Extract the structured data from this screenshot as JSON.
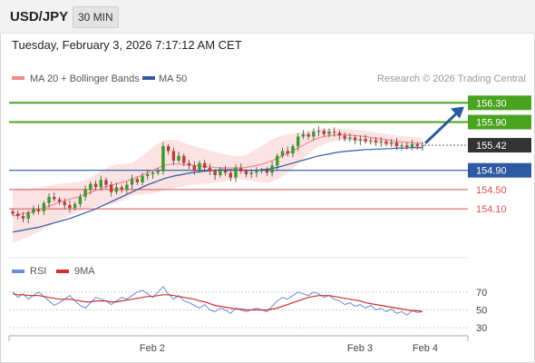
{
  "header": {
    "symbol": "USD/JPY",
    "timeframe": "30 MIN"
  },
  "datetime": "Tuesday, February 3, 2026 7:17:12 AM CET",
  "credit": "Research © 2026 Trading Central",
  "colors": {
    "ma20": "#f28b8b",
    "ma50": "#2d5aa0",
    "resistance": "#4aa31f",
    "support_blue": "#2d5aa0",
    "support_red": "#e05050",
    "candle_up": "#3a9a2a",
    "candle_down": "#c33a3a",
    "rsi": "#6a8cdb",
    "rsi_ma": "#d03030",
    "arrow": "#2d5aa0",
    "current": "#333333"
  },
  "chart_data": [
    {
      "type": "candlestick",
      "legend": [
        {
          "name": "MA 20 + Bollinger Bands",
          "color": "#f28b8b"
        },
        {
          "name": "MA 50",
          "color": "#2d5aa0"
        }
      ],
      "x_ticks": [
        "Feb 2",
        "Feb 3",
        "Feb 4"
      ],
      "ylim": [
        153.2,
        156.55
      ],
      "current_price": "155.42",
      "levels": [
        {
          "value": 156.3,
          "label": "156.30",
          "kind": "resistance"
        },
        {
          "value": 155.9,
          "label": "155.90",
          "kind": "resistance"
        },
        {
          "value": 154.9,
          "label": "154.90",
          "kind": "pivot"
        },
        {
          "value": 154.5,
          "label": "154.50",
          "kind": "support"
        },
        {
          "value": 154.1,
          "label": "154.10",
          "kind": "support"
        }
      ],
      "closes": [
        154.0,
        153.95,
        153.9,
        154.02,
        154.1,
        154.05,
        154.22,
        154.35,
        154.3,
        154.25,
        154.18,
        154.12,
        154.2,
        154.35,
        154.5,
        154.62,
        154.55,
        154.7,
        154.6,
        154.45,
        154.55,
        154.5,
        154.6,
        154.72,
        154.65,
        154.78,
        154.82,
        154.85,
        154.88,
        155.4,
        155.3,
        155.1,
        155.2,
        155.05,
        155.0,
        154.9,
        155.05,
        154.95,
        154.88,
        154.8,
        154.9,
        154.85,
        154.75,
        154.95,
        154.88,
        154.82,
        154.85,
        154.88,
        154.9,
        154.85,
        155.0,
        155.2,
        155.3,
        155.25,
        155.4,
        155.6,
        155.65,
        155.6,
        155.7,
        155.72,
        155.65,
        155.7,
        155.68,
        155.62,
        155.55,
        155.58,
        155.52,
        155.55,
        155.5,
        155.52,
        155.48,
        155.5,
        155.45,
        155.48,
        155.4,
        155.42,
        155.38,
        155.44,
        155.4,
        155.42
      ],
      "ma20": [
        153.95,
        153.98,
        154.0,
        154.02,
        154.05,
        154.08,
        154.12,
        154.16,
        154.2,
        154.24,
        154.27,
        154.3,
        154.33,
        154.36,
        154.4,
        154.44,
        154.48,
        154.52,
        154.56,
        154.59,
        154.62,
        154.65,
        154.68,
        154.72,
        154.76,
        154.8,
        154.85,
        154.9,
        154.95,
        155.0,
        155.02,
        155.03,
        155.03,
        155.02,
        155.01,
        155.0,
        154.99,
        154.98,
        154.97,
        154.96,
        154.95,
        154.95,
        154.95,
        154.95,
        154.95,
        154.96,
        154.98,
        155.0,
        155.03,
        155.06,
        155.1,
        155.15,
        155.2,
        155.25,
        155.3,
        155.36,
        155.42,
        155.48,
        155.53,
        155.57,
        155.6,
        155.62,
        155.63,
        155.64,
        155.64,
        155.63,
        155.62,
        155.61,
        155.6,
        155.58,
        155.56,
        155.55,
        155.53,
        155.52,
        155.5,
        155.49,
        155.48,
        155.47,
        155.46,
        155.45
      ],
      "bb_width": [
        0.55,
        0.55,
        0.52,
        0.5,
        0.48,
        0.46,
        0.44,
        0.42,
        0.4,
        0.38,
        0.36,
        0.34,
        0.32,
        0.3,
        0.3,
        0.32,
        0.34,
        0.36,
        0.38,
        0.4,
        0.4,
        0.38,
        0.36,
        0.34,
        0.36,
        0.4,
        0.44,
        0.48,
        0.5,
        0.52,
        0.52,
        0.5,
        0.48,
        0.45,
        0.42,
        0.4,
        0.38,
        0.36,
        0.34,
        0.32,
        0.3,
        0.28,
        0.26,
        0.24,
        0.24,
        0.26,
        0.3,
        0.34,
        0.38,
        0.42,
        0.44,
        0.44,
        0.42,
        0.4,
        0.36,
        0.32,
        0.28,
        0.24,
        0.2,
        0.18,
        0.16,
        0.14,
        0.13,
        0.12,
        0.12,
        0.12,
        0.12,
        0.12,
        0.12,
        0.12,
        0.12,
        0.12,
        0.12,
        0.12,
        0.12,
        0.12,
        0.12,
        0.12,
        0.12,
        0.12
      ],
      "ma50": [
        153.62,
        153.64,
        153.66,
        153.68,
        153.7,
        153.72,
        153.75,
        153.78,
        153.81,
        153.84,
        153.87,
        153.9,
        153.94,
        153.98,
        154.02,
        154.06,
        154.1,
        154.15,
        154.2,
        154.25,
        154.3,
        154.35,
        154.4,
        154.45,
        154.5,
        154.55,
        154.6,
        154.64,
        154.68,
        154.72,
        154.75,
        154.78,
        154.8,
        154.82,
        154.84,
        154.86,
        154.87,
        154.88,
        154.89,
        154.9,
        154.91,
        154.91,
        154.91,
        154.91,
        154.9,
        154.9,
        154.9,
        154.9,
        154.91,
        154.92,
        154.94,
        154.96,
        154.99,
        155.02,
        155.05,
        155.08,
        155.11,
        155.14,
        155.17,
        155.2,
        155.22,
        155.24,
        155.26,
        155.28,
        155.29,
        155.3,
        155.31,
        155.32,
        155.33,
        155.33,
        155.34,
        155.34,
        155.35,
        155.35,
        155.36,
        155.36,
        155.36,
        155.37,
        155.37,
        155.37
      ]
    },
    {
      "type": "line",
      "legend": [
        {
          "name": "RSI",
          "color": "#6a8cdb"
        },
        {
          "name": "9MA",
          "color": "#d03030"
        }
      ],
      "ylim": [
        25,
        80
      ],
      "y_ticks": [
        70,
        50,
        30
      ],
      "rsi": [
        70,
        64,
        68,
        62,
        66,
        70,
        65,
        60,
        55,
        58,
        62,
        66,
        60,
        55,
        52,
        58,
        64,
        62,
        60,
        56,
        60,
        64,
        62,
        66,
        70,
        72,
        68,
        64,
        70,
        76,
        68,
        62,
        66,
        60,
        58,
        55,
        52,
        56,
        50,
        48,
        52,
        50,
        46,
        52,
        50,
        48,
        50,
        52,
        50,
        48,
        54,
        60,
        64,
        62,
        66,
        70,
        68,
        66,
        70,
        68,
        64,
        66,
        62,
        60,
        56,
        58,
        54,
        56,
        52,
        55,
        50,
        52,
        48,
        51,
        46,
        48,
        44,
        49,
        47,
        48
      ],
      "rsi_ma": [
        68,
        67,
        67,
        66,
        66,
        66,
        65,
        64,
        63,
        62,
        62,
        62,
        61,
        60,
        59,
        59,
        60,
        60,
        60,
        59,
        59,
        60,
        61,
        62,
        63,
        64,
        65,
        65,
        66,
        67,
        67,
        66,
        65,
        64,
        63,
        62,
        60,
        59,
        57,
        55,
        54,
        53,
        52,
        51,
        51,
        50,
        50,
        50,
        50,
        50,
        51,
        52,
        54,
        56,
        58,
        60,
        62,
        64,
        65,
        66,
        66,
        66,
        65,
        64,
        63,
        62,
        61,
        60,
        58,
        57,
        56,
        55,
        54,
        53,
        52,
        51,
        50,
        49,
        49,
        48
      ]
    }
  ]
}
